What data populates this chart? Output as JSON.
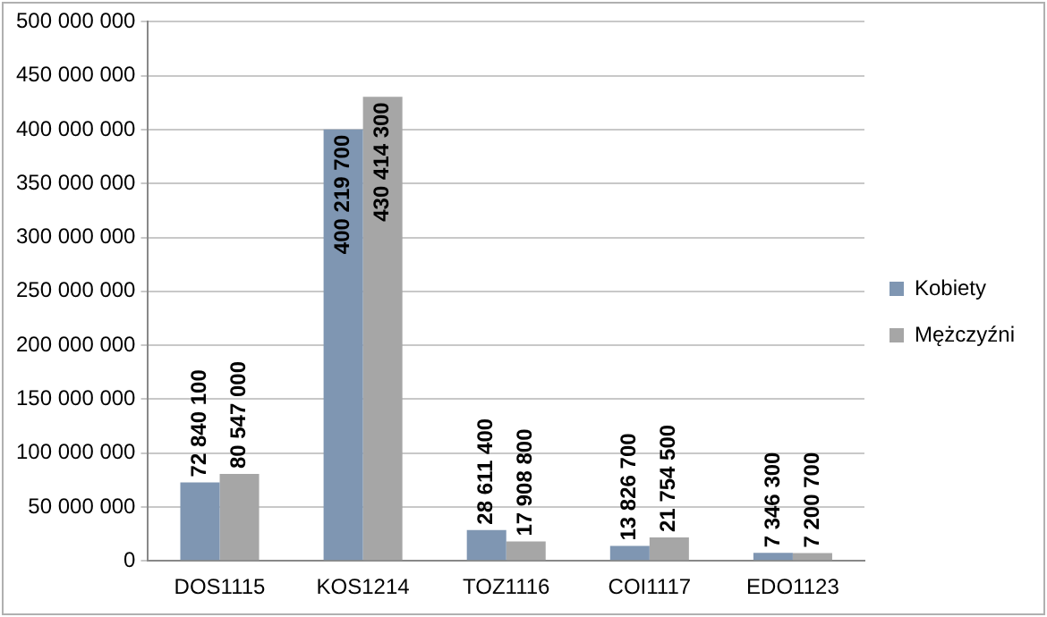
{
  "chart_data": {
    "type": "bar",
    "categories": [
      "DOS1115",
      "KOS1214",
      "TOZ1116",
      "COI1117",
      "EDO1123"
    ],
    "series": [
      {
        "name": "Kobiety",
        "color": "#7f96b2",
        "values": [
          72840100,
          400219700,
          28611400,
          13826700,
          7346300
        ]
      },
      {
        "name": "Mężczyźni",
        "color": "#a6a6a6",
        "values": [
          80547000,
          430414300,
          17908800,
          21754500,
          7200700
        ]
      }
    ],
    "ylim": [
      0,
      500000000
    ],
    "yticks": [
      0,
      50000000,
      100000000,
      150000000,
      200000000,
      250000000,
      300000000,
      350000000,
      400000000,
      450000000,
      500000000
    ],
    "grid": "y",
    "legend": "right",
    "data_labels": true
  }
}
